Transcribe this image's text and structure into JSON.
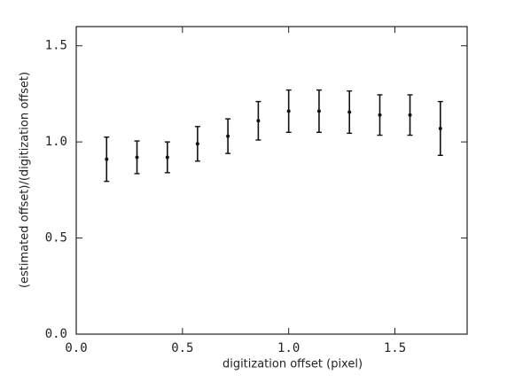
{
  "chart_data": {
    "type": "errorbar",
    "xlabel": "digitization offset (pixel)",
    "ylabel": "(estimated offset)/(digitization offset)",
    "x": [
      0.143,
      0.286,
      0.429,
      0.571,
      0.714,
      0.857,
      1.0,
      1.143,
      1.286,
      1.429,
      1.571,
      1.714
    ],
    "values": [
      0.91,
      0.92,
      0.92,
      0.99,
      1.03,
      1.11,
      1.16,
      1.16,
      1.155,
      1.14,
      1.14,
      1.07
    ],
    "errors": [
      0.115,
      0.085,
      0.08,
      0.09,
      0.09,
      0.1,
      0.11,
      0.11,
      0.11,
      0.105,
      0.105,
      0.14
    ],
    "color": "#111111",
    "xlim": [
      0,
      1.84
    ],
    "ylim": [
      0,
      1.6
    ],
    "xticks": [
      {
        "value": 0,
        "label": "0.0"
      },
      {
        "value": 0.5,
        "label": "0.5"
      },
      {
        "value": 1,
        "label": "1.0"
      },
      {
        "value": 1.5,
        "label": "1.5"
      }
    ],
    "yticks": [
      {
        "value": 0,
        "label": "0.0"
      },
      {
        "value": 0.5,
        "label": "0.5"
      },
      {
        "value": 1,
        "label": "1.0"
      },
      {
        "value": 1.5,
        "label": "1.5"
      }
    ]
  }
}
